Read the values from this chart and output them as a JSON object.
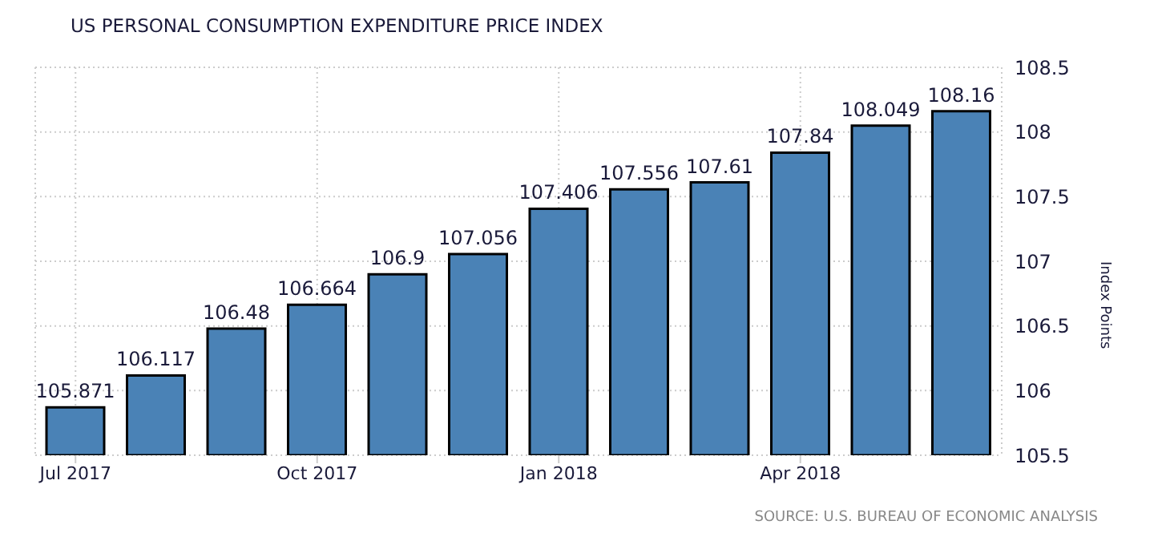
{
  "chart_data": {
    "type": "bar",
    "title": "US PERSONAL CONSUMPTION EXPENDITURE PRICE INDEX",
    "ylabel": "Index Points",
    "categories": [
      "Jul 2017",
      null,
      null,
      "Oct 2017",
      null,
      null,
      "Jan 2018",
      null,
      null,
      "Apr 2018",
      null,
      null
    ],
    "values": [
      105.871,
      106.117,
      106.48,
      106.664,
      106.9,
      107.056,
      107.406,
      107.556,
      107.61,
      107.84,
      108.049,
      108.16
    ],
    "color": "#4a82b6",
    "ylim": [
      105.5,
      108.5
    ],
    "yticks": [
      105.5,
      106,
      106.5,
      107,
      107.5,
      108,
      108.5
    ],
    "grid": true,
    "data_labels": true,
    "annotations": [
      "SOURCE: U.S. BUREAU OF ECONOMIC ANALYSIS"
    ]
  }
}
